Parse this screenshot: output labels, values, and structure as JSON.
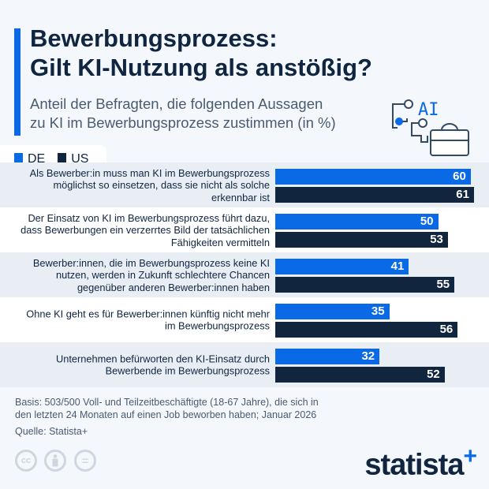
{
  "title_line1": "Bewerbungsprozess:",
  "title_line2": "Gilt KI-Nutzung als anstößig?",
  "subtitle_line1": "Anteil der Befragten, die folgenden Aussagen",
  "subtitle_line2": "zu KI im Bewerbungsprozess zustimmen (in %)",
  "icon_text": "AI",
  "colors": {
    "DE": "#0a6ae6",
    "US": "#12253f"
  },
  "chart_data": {
    "type": "bar",
    "orientation": "horizontal",
    "legend_position": "top-left",
    "categories": [
      "Als Bewerber:in muss man KI im Bewerbungsprozess möglichst so einsetzen, dass sie nicht als solche erkennbar ist",
      "Der Einsatz von KI im Bewerbungsprozess führt dazu, dass Bewerbungen ein verzerrtes Bild der tatsächlichen Fähigkeiten vermitteln",
      "Bewerber:innen, die im Bewerbungsprozess keine KI nutzen, werden in Zukunft schlechtere Chancen gegenüber anderen Bewerber:innen haben",
      "Ohne KI geht es für Bewerber:innen künftig nicht mehr im Bewerbungsprozess",
      "Unternehmen befürworten den KI-Einsatz durch Bewerbende im Bewerbungsprozess"
    ],
    "series": [
      {
        "name": "DE",
        "values": [
          60,
          50,
          41,
          35,
          32
        ]
      },
      {
        "name": "US",
        "values": [
          61,
          53,
          55,
          56,
          52
        ]
      }
    ]
  },
  "footer": {
    "basis_line1": "Basis: 503/500 Voll- und Teilzeitbeschäftigte (18-67 Jahre), die sich in",
    "basis_line2": "den letzten 24 Monaten auf einen Job beworben haben; Januar 2026",
    "source": "Quelle: Statista+",
    "cc_text": "cc",
    "eq_text": "=",
    "logo": "statista",
    "logo_plus": "+"
  }
}
